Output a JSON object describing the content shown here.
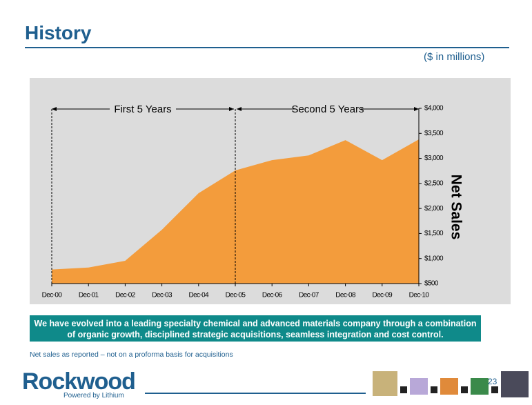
{
  "slide": {
    "title": "History",
    "banner": "We have evolved into a leading specialty chemical and advanced materials company through a combination of organic growth, disciplined strategic acquisitions, seamless integration and cost control.",
    "footnote": "Net sales as reported – not on a proforma basis for acquisitions",
    "logo": "Rockwood",
    "logo_tagline": "Powered by Lithium",
    "page_number": "23"
  },
  "chart_data": {
    "type": "area",
    "units": "($ in millions)",
    "y_label": "Net Sales",
    "annotations": [
      "First 5 Years",
      "Second 5 Years"
    ],
    "categories": [
      "Dec-00",
      "Dec-01",
      "Dec-02",
      "Dec-03",
      "Dec-04",
      "Dec-05",
      "Dec-06",
      "Dec-07",
      "Dec-08",
      "Dec-09",
      "Dec-10"
    ],
    "values": [
      780,
      820,
      955,
      1575,
      2305,
      2760,
      2965,
      3060,
      3365,
      2965,
      3380
    ],
    "color": "#f39c3c",
    "ylim": [
      500,
      4000
    ],
    "yticks": [
      {
        "value": 500,
        "label": "$500"
      },
      {
        "value": 1000,
        "label": "$1,000"
      },
      {
        "value": 1500,
        "label": "$1,500"
      },
      {
        "value": 2000,
        "label": "$2,000"
      },
      {
        "value": 2500,
        "label": "$2,500"
      },
      {
        "value": 3000,
        "label": "$3,000"
      },
      {
        "value": 3500,
        "label": "$3,500"
      },
      {
        "value": 4000,
        "label": "$4,000"
      }
    ]
  }
}
